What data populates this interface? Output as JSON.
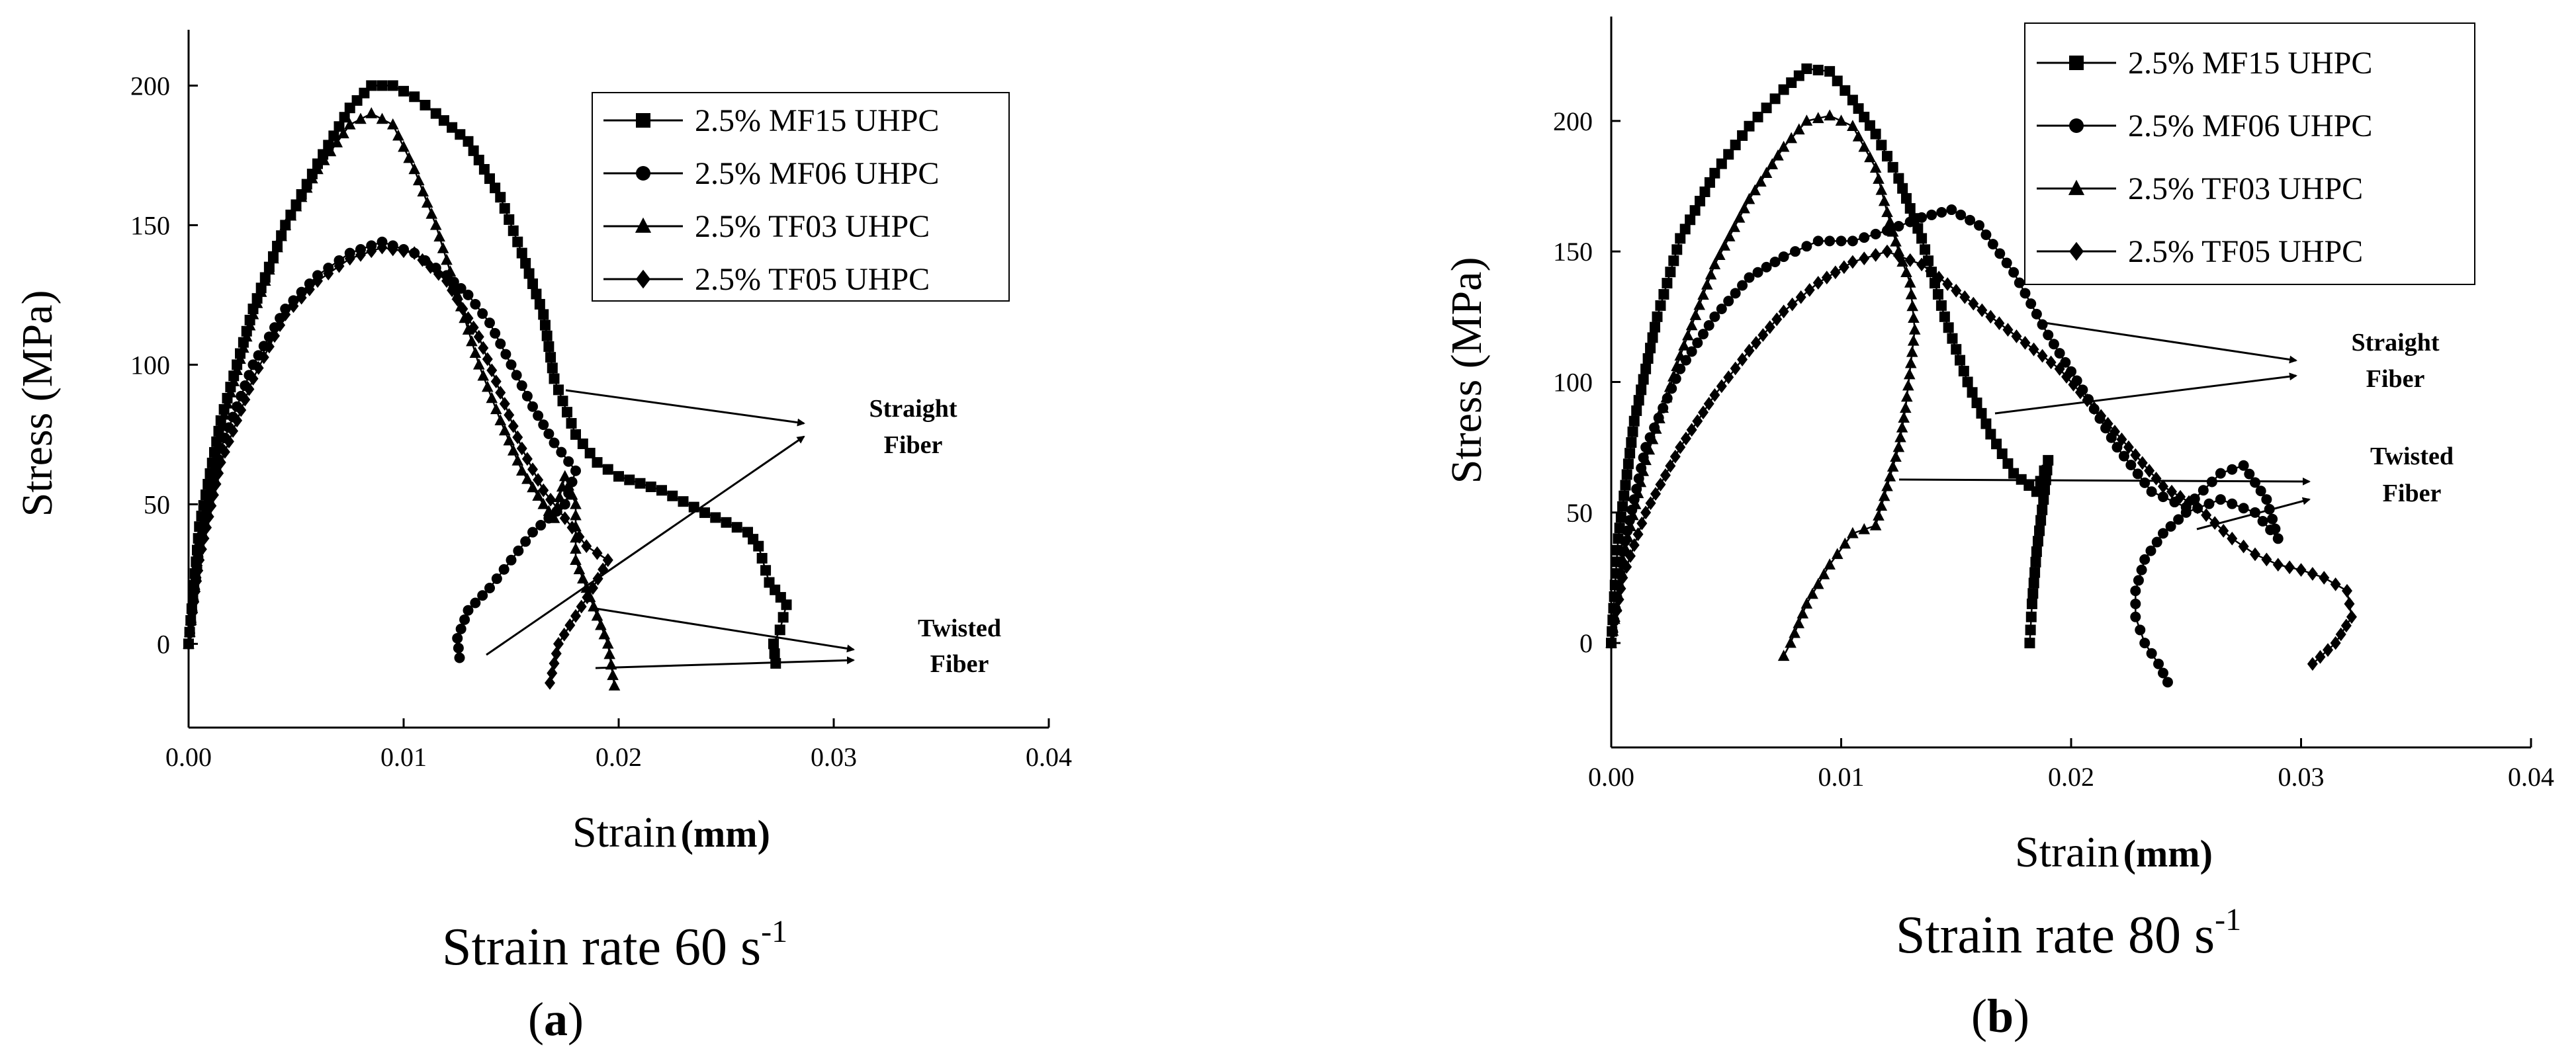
{
  "chart_data": [
    {
      "type": "line",
      "panel_label": "a",
      "title_text": "Strain rate 60 s",
      "title_sup": "-1",
      "xlabel": "Strain",
      "xlabel_unit": "(mm)",
      "ylabel": "Stress (MPa)",
      "xlim": [
        0,
        0.04
      ],
      "ylim": [
        -30,
        220
      ],
      "xticks": [
        "0.00",
        "0.01",
        "0.02",
        "0.03",
        "0.04"
      ],
      "yticks": [
        "0",
        "50",
        "100",
        "150",
        "200"
      ],
      "legend_position": "top-right",
      "annotations": [
        {
          "lines": [
            "Straight",
            "Fiber"
          ]
        },
        {
          "lines": [
            "Twisted",
            "Fiber"
          ]
        }
      ],
      "series": [
        {
          "name": "2.5% MF15 UHPC",
          "marker": "square",
          "points": [
            [
              0,
              0
            ],
            [
              0.0005,
              42
            ],
            [
              0.0015,
              80
            ],
            [
              0.003,
              120
            ],
            [
              0.0045,
              150
            ],
            [
              0.006,
              172
            ],
            [
              0.0075,
              192
            ],
            [
              0.0085,
              200
            ],
            [
              0.0095,
              200
            ],
            [
              0.0105,
              196
            ],
            [
              0.0115,
              190
            ],
            [
              0.013,
              180
            ],
            [
              0.0145,
              160
            ],
            [
              0.0155,
              140
            ],
            [
              0.0165,
              118
            ],
            [
              0.017,
              95
            ],
            [
              0.018,
              75
            ],
            [
              0.019,
              65
            ],
            [
              0.02,
              60
            ],
            [
              0.022,
              55
            ],
            [
              0.024,
              47
            ],
            [
              0.026,
              40
            ],
            [
              0.0265,
              35
            ],
            [
              0.027,
              22
            ],
            [
              0.0278,
              14
            ],
            [
              0.0275,
              5
            ],
            [
              0.0272,
              0
            ],
            [
              0.0273,
              -7
            ]
          ]
        },
        {
          "name": "2.5% MF06 UHPC",
          "marker": "circle",
          "points": [
            [
              0,
              0
            ],
            [
              0.0005,
              35
            ],
            [
              0.0015,
              70
            ],
            [
              0.003,
              100
            ],
            [
              0.0045,
              120
            ],
            [
              0.006,
              132
            ],
            [
              0.0075,
              140
            ],
            [
              0.009,
              144
            ],
            [
              0.0105,
              140
            ],
            [
              0.012,
              132
            ],
            [
              0.013,
              125
            ],
            [
              0.014,
              115
            ],
            [
              0.015,
              100
            ],
            [
              0.016,
              85
            ],
            [
              0.017,
              72
            ],
            [
              0.018,
              62
            ],
            [
              0.0175,
              50
            ],
            [
              0.016,
              40
            ],
            [
              0.015,
              30
            ],
            [
              0.014,
              20
            ],
            [
              0.013,
              12
            ],
            [
              0.0125,
              2
            ],
            [
              0.0126,
              -5
            ]
          ]
        },
        {
          "name": "2.5% TF03 UHPC",
          "marker": "triangle",
          "points": [
            [
              0,
              0
            ],
            [
              0.0005,
              38
            ],
            [
              0.0015,
              78
            ],
            [
              0.003,
              118
            ],
            [
              0.0045,
              150
            ],
            [
              0.006,
              170
            ],
            [
              0.0075,
              186
            ],
            [
              0.0085,
              190
            ],
            [
              0.0095,
              186
            ],
            [
              0.0105,
              170
            ],
            [
              0.0115,
              150
            ],
            [
              0.0125,
              125
            ],
            [
              0.0135,
              100
            ],
            [
              0.0145,
              80
            ],
            [
              0.0155,
              62
            ],
            [
              0.0165,
              50
            ],
            [
              0.017,
              45
            ],
            [
              0.0175,
              60
            ],
            [
              0.018,
              50
            ],
            [
              0.018,
              30
            ],
            [
              0.0185,
              20
            ],
            [
              0.019,
              10
            ],
            [
              0.0195,
              0
            ],
            [
              0.0198,
              -15
            ]
          ]
        },
        {
          "name": "2.5% TF05 UHPC",
          "marker": "diamond",
          "points": [
            [
              0,
              0
            ],
            [
              0.0005,
              30
            ],
            [
              0.0015,
              65
            ],
            [
              0.003,
              95
            ],
            [
              0.0045,
              118
            ],
            [
              0.006,
              130
            ],
            [
              0.0075,
              138
            ],
            [
              0.009,
              142
            ],
            [
              0.0105,
              140
            ],
            [
              0.012,
              130
            ],
            [
              0.0135,
              110
            ],
            [
              0.0145,
              90
            ],
            [
              0.0155,
              70
            ],
            [
              0.0165,
              55
            ],
            [
              0.0175,
              45
            ],
            [
              0.0185,
              35
            ],
            [
              0.0195,
              30
            ],
            [
              0.0188,
              20
            ],
            [
              0.018,
              10
            ],
            [
              0.0172,
              0
            ],
            [
              0.0168,
              -14
            ]
          ]
        }
      ]
    },
    {
      "type": "line",
      "panel_label": "b",
      "title_text": "Strain rate 80 s",
      "title_sup": "-1",
      "xlabel": "Strain",
      "xlabel_unit": "(mm)",
      "ylabel": "Stress (MPa)",
      "xlim": [
        0,
        0.04
      ],
      "ylim": [
        -40,
        240
      ],
      "xticks": [
        "0.00",
        "0.01",
        "0.02",
        "0.03",
        "0.04"
      ],
      "yticks": [
        "0",
        "50",
        "100",
        "150",
        "200"
      ],
      "legend_position": "top-right",
      "annotations": [
        {
          "lines": [
            "Straight",
            "Fiber"
          ]
        },
        {
          "lines": [
            "Twisted",
            "Fiber"
          ]
        }
      ],
      "series": [
        {
          "name": "2.5% MF15 UHPC",
          "marker": "square",
          "points": [
            [
              0,
              0
            ],
            [
              0.0003,
              40
            ],
            [
              0.001,
              85
            ],
            [
              0.002,
              125
            ],
            [
              0.003,
              155
            ],
            [
              0.0045,
              180
            ],
            [
              0.006,
              198
            ],
            [
              0.0075,
              212
            ],
            [
              0.0085,
              220
            ],
            [
              0.0095,
              219
            ],
            [
              0.0105,
              208
            ],
            [
              0.0115,
              195
            ],
            [
              0.0125,
              178
            ],
            [
              0.0135,
              155
            ],
            [
              0.0145,
              125
            ],
            [
              0.0155,
              100
            ],
            [
              0.0165,
              80
            ],
            [
              0.0175,
              65
            ],
            [
              0.0185,
              58
            ],
            [
              0.019,
              70
            ],
            [
              0.0188,
              55
            ],
            [
              0.0185,
              35
            ],
            [
              0.0183,
              15
            ],
            [
              0.0182,
              0
            ]
          ]
        },
        {
          "name": "2.5% MF06 UHPC",
          "marker": "circle",
          "points": [
            [
              0,
              0
            ],
            [
              0.0005,
              35
            ],
            [
              0.0015,
              75
            ],
            [
              0.003,
              105
            ],
            [
              0.0045,
              125
            ],
            [
              0.006,
              140
            ],
            [
              0.0075,
              148
            ],
            [
              0.009,
              154
            ],
            [
              0.0105,
              154
            ],
            [
              0.012,
              158
            ],
            [
              0.0135,
              163
            ],
            [
              0.0148,
              166
            ],
            [
              0.016,
              160
            ],
            [
              0.0175,
              142
            ],
            [
              0.019,
              118
            ],
            [
              0.0205,
              97
            ],
            [
              0.022,
              75
            ],
            [
              0.0235,
              58
            ],
            [
              0.025,
              52
            ],
            [
              0.0265,
              65
            ],
            [
              0.0275,
              68
            ],
            [
              0.0285,
              55
            ],
            [
              0.029,
              40
            ],
            [
              0.028,
              50
            ],
            [
              0.0265,
              55
            ],
            [
              0.025,
              50
            ],
            [
              0.024,
              42
            ],
            [
              0.0232,
              32
            ],
            [
              0.0228,
              20
            ],
            [
              0.0228,
              10
            ],
            [
              0.0232,
              0
            ],
            [
              0.0238,
              -8
            ],
            [
              0.0242,
              -15
            ]
          ]
        },
        {
          "name": "2.5% TF03 UHPC",
          "marker": "triangle",
          "points": [
            [
              0,
              0
            ],
            [
              0.0005,
              32
            ],
            [
              0.0015,
              70
            ],
            [
              0.003,
              110
            ],
            [
              0.0045,
              145
            ],
            [
              0.006,
              170
            ],
            [
              0.0075,
              190
            ],
            [
              0.0085,
              200
            ],
            [
              0.0095,
              202
            ],
            [
              0.0105,
              198
            ],
            [
              0.0115,
              182
            ],
            [
              0.012,
              165
            ],
            [
              0.0125,
              150
            ],
            [
              0.013,
              138
            ],
            [
              0.0132,
              120
            ],
            [
              0.0128,
              90
            ],
            [
              0.0125,
              75
            ],
            [
              0.012,
              60
            ],
            [
              0.0115,
              45
            ],
            [
              0.0105,
              42
            ],
            [
              0.0095,
              30
            ],
            [
              0.0085,
              15
            ],
            [
              0.0078,
              0
            ],
            [
              0.0075,
              -5
            ]
          ]
        },
        {
          "name": "2.5% TF05 UHPC",
          "marker": "diamond",
          "points": [
            [
              0,
              0
            ],
            [
              0.0005,
              25
            ],
            [
              0.0015,
              50
            ],
            [
              0.003,
              75
            ],
            [
              0.0045,
              95
            ],
            [
              0.006,
              112
            ],
            [
              0.0075,
              127
            ],
            [
              0.009,
              138
            ],
            [
              0.0105,
              146
            ],
            [
              0.012,
              150
            ],
            [
              0.0135,
              145
            ],
            [
              0.015,
              135
            ],
            [
              0.0165,
              125
            ],
            [
              0.018,
              115
            ],
            [
              0.0195,
              105
            ],
            [
              0.021,
              90
            ],
            [
              0.0225,
              75
            ],
            [
              0.024,
              60
            ],
            [
              0.0255,
              52
            ],
            [
              0.027,
              40
            ],
            [
              0.028,
              34
            ],
            [
              0.029,
              30
            ],
            [
              0.03,
              28
            ],
            [
              0.031,
              25
            ],
            [
              0.032,
              20
            ],
            [
              0.0322,
              10
            ],
            [
              0.0315,
              0
            ],
            [
              0.0305,
              -8
            ]
          ]
        }
      ]
    }
  ]
}
